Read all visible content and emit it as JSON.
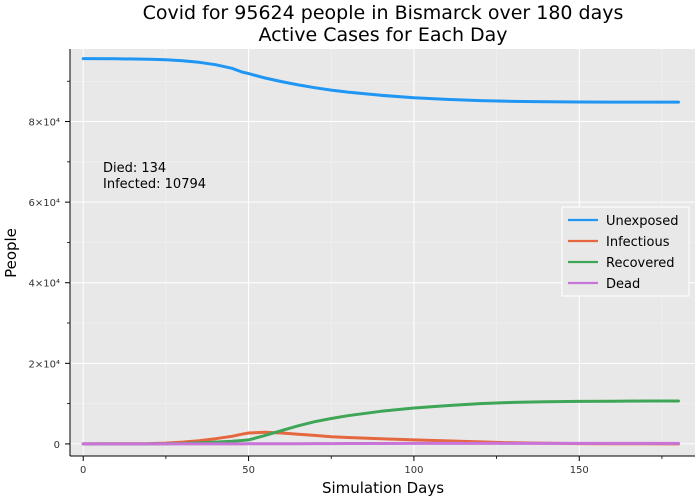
{
  "chart_data": {
    "type": "line",
    "title": "Covid for 95624 people in Bismarck over 180 days",
    "subtitle": "Active Cases for Each Day",
    "xlabel": "Simulation Days",
    "ylabel": "People",
    "xlim": [
      -4,
      185
    ],
    "ylim": [
      -3000,
      98000
    ],
    "grid": true,
    "legend_position": "right",
    "x_ticks": [
      0,
      50,
      100,
      150
    ],
    "x_tick_labels": [
      "0",
      "50",
      "100",
      "150"
    ],
    "y_ticks": [
      0,
      20000,
      40000,
      60000,
      80000
    ],
    "y_tick_labels": [
      "0",
      "2×10⁴",
      "4×10⁴",
      "6×10⁴",
      "8×10⁴"
    ],
    "annotations": [
      "Died: 134",
      "Infected: 10794"
    ],
    "x": [
      0,
      10,
      20,
      25,
      30,
      35,
      40,
      45,
      48,
      50,
      55,
      60,
      65,
      70,
      75,
      80,
      90,
      100,
      110,
      120,
      130,
      140,
      150,
      160,
      170,
      180
    ],
    "series": [
      {
        "name": "Unexposed",
        "color": "#1f96f3",
        "values": [
          95624,
          95580,
          95470,
          95340,
          95100,
          94700,
          94100,
          93200,
          92300,
          91900,
          90800,
          89900,
          89100,
          88400,
          87800,
          87300,
          86500,
          85900,
          85500,
          85200,
          85000,
          84900,
          84850,
          84830,
          84830,
          84830
        ]
      },
      {
        "name": "Infectious",
        "color": "#e5673f",
        "values": [
          0,
          20,
          80,
          200,
          450,
          800,
          1300,
          1900,
          2400,
          2700,
          2900,
          2700,
          2400,
          2100,
          1800,
          1600,
          1300,
          1000,
          750,
          500,
          280,
          150,
          80,
          40,
          20,
          10
        ]
      },
      {
        "name": "Recovered",
        "color": "#3ea656",
        "values": [
          0,
          0,
          10,
          40,
          100,
          250,
          450,
          650,
          850,
          1000,
          2100,
          3300,
          4500,
          5500,
          6300,
          7000,
          8100,
          8900,
          9500,
          10000,
          10300,
          10450,
          10550,
          10600,
          10640,
          10650
        ]
      },
      {
        "name": "Dead",
        "color": "#c874d8",
        "values": [
          0,
          0,
          0,
          0,
          1,
          3,
          6,
          10,
          14,
          18,
          30,
          45,
          60,
          75,
          88,
          98,
          112,
          122,
          128,
          131,
          133,
          134,
          134,
          134,
          134,
          134
        ]
      }
    ]
  }
}
